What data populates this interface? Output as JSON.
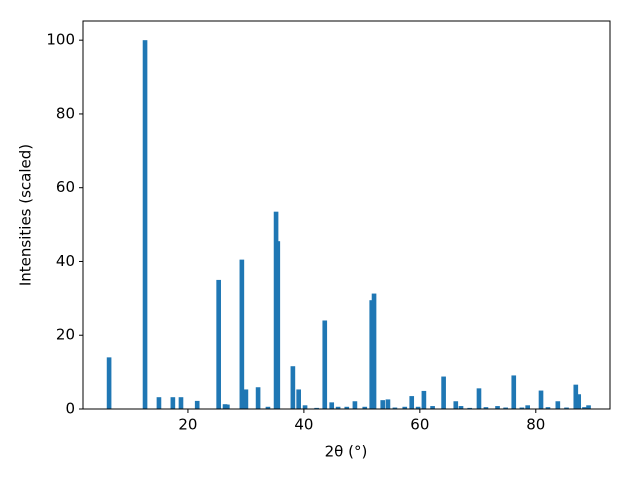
{
  "chart_data": {
    "type": "bar",
    "xlabel": "2θ (°)",
    "ylabel": "Intensities (scaled)",
    "color": "#1f77b4",
    "x": [
      6.4,
      12.6,
      15.0,
      17.4,
      18.8,
      21.6,
      25.3,
      26.4,
      26.8,
      29.3,
      30.0,
      32.1,
      33.8,
      35.2,
      35.5,
      38.1,
      39.1,
      40.2,
      42.2,
      43.6,
      44.8,
      45.9,
      47.4,
      48.8,
      50.5,
      51.7,
      52.1,
      53.6,
      54.5,
      55.7,
      57.4,
      58.6,
      59.7,
      60.7,
      62.2,
      64.1,
      66.2,
      67.1,
      68.6,
      70.2,
      71.4,
      73.4,
      74.8,
      76.2,
      77.6,
      78.6,
      80.9,
      82.1,
      83.8,
      85.3,
      86.9,
      87.4,
      88.4,
      89.1
    ],
    "values": [
      14,
      100,
      3.2,
      3.2,
      3.2,
      2.2,
      35,
      1.3,
      1.2,
      40.5,
      5.3,
      5.9,
      0.6,
      53.5,
      45.5,
      11.6,
      5.3,
      1,
      0.3,
      24,
      1.8,
      0.6,
      0.6,
      2.1,
      0.6,
      29.5,
      31.3,
      2.4,
      2.6,
      0.4,
      0.6,
      3.5,
      0.6,
      4.9,
      0.8,
      8.8,
      2.1,
      0.8,
      0.3,
      5.6,
      0.5,
      0.8,
      0.4,
      9.1,
      0.4,
      1.0,
      5.0,
      0.5,
      2.1,
      0.4,
      6.6,
      4,
      0.5,
      1.0
    ],
    "xlim": [
      1.9,
      92.8
    ],
    "xticks": [
      20,
      40,
      60,
      80
    ],
    "ylim": [
      0,
      105.2
    ],
    "yticks": [
      0,
      20,
      40,
      60,
      80,
      100
    ]
  }
}
